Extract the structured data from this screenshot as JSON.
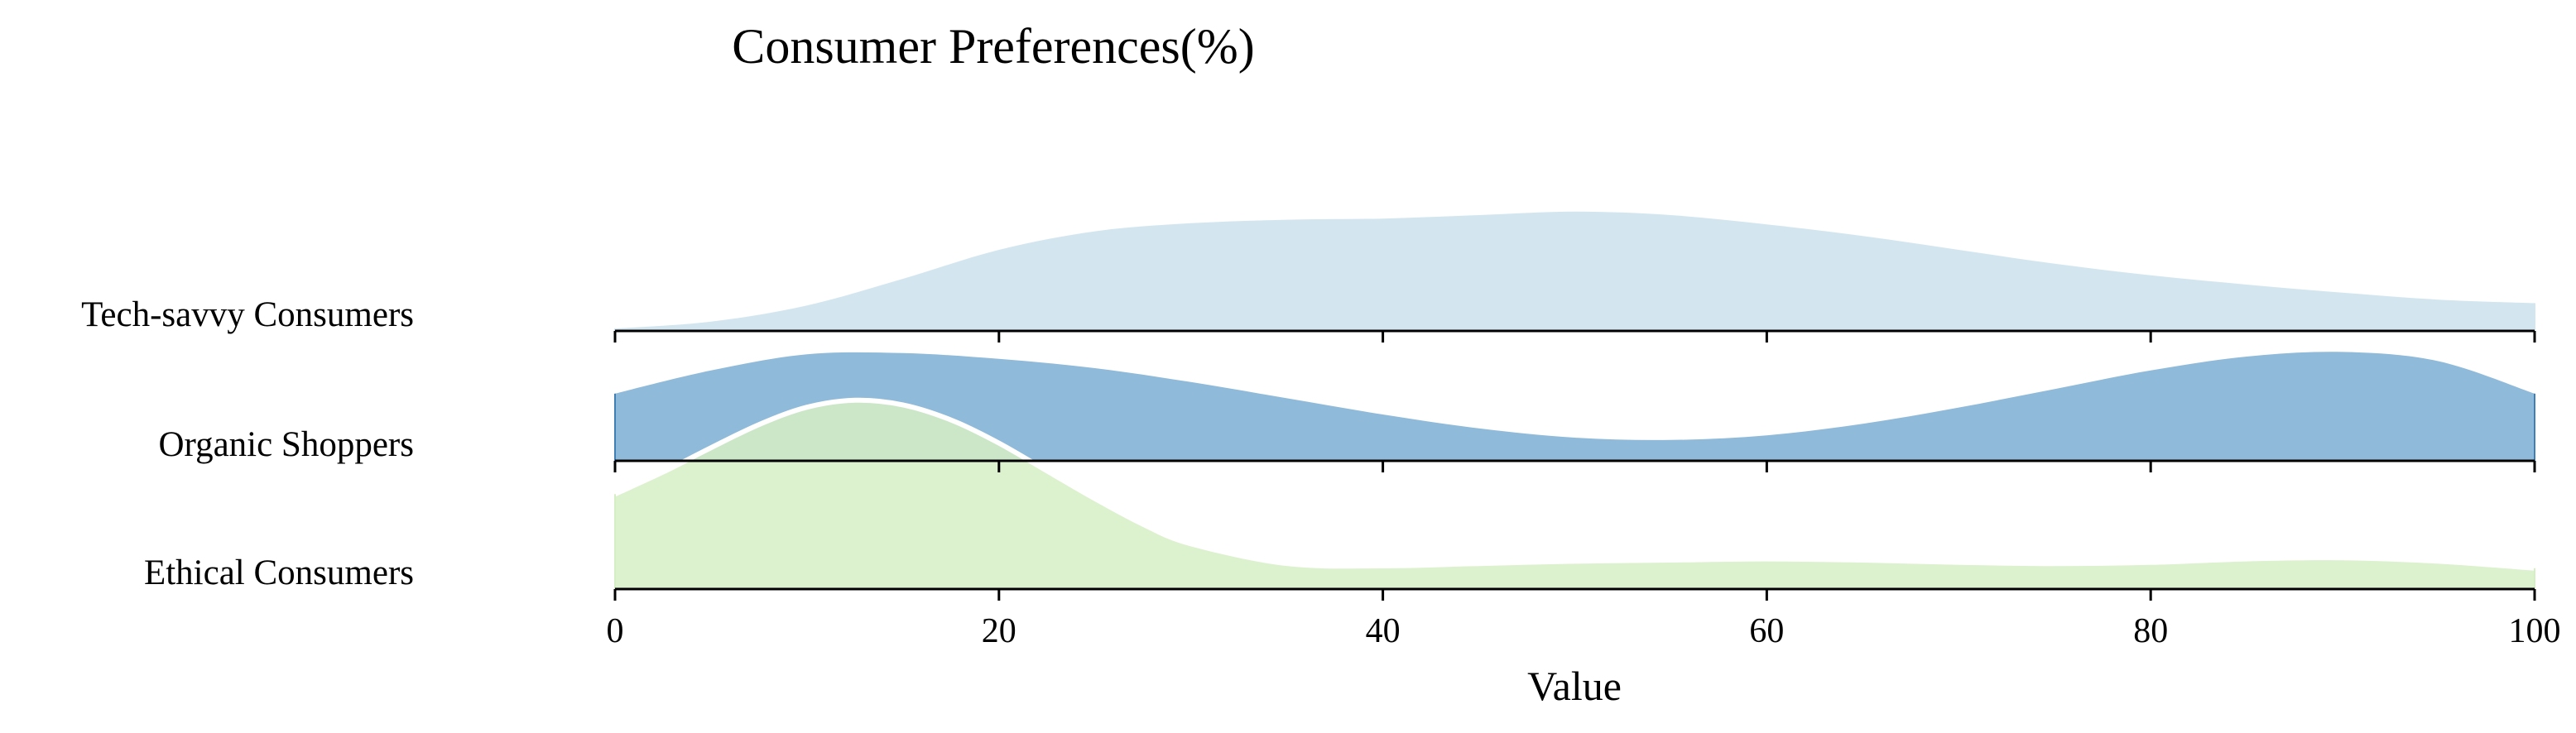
{
  "chart_data": {
    "type": "area",
    "title": "Consumer Preferences(%)",
    "xlabel": "Value",
    "ylabel": "",
    "xlim": [
      0,
      100
    ],
    "x_ticks": [
      0,
      20,
      40,
      60,
      80,
      100
    ],
    "grid": false,
    "legend": "none",
    "series": [
      {
        "name": "Tech-savvy Consumers",
        "color": "#d3e6f0",
        "x": [
          0,
          5,
          10,
          15,
          20,
          25,
          30,
          35,
          40,
          45,
          50,
          55,
          60,
          65,
          70,
          75,
          80,
          85,
          90,
          95,
          100
        ],
        "density": [
          0.02,
          0.08,
          0.22,
          0.45,
          0.7,
          0.86,
          0.93,
          0.96,
          0.97,
          1.0,
          1.03,
          1.0,
          0.92,
          0.82,
          0.7,
          0.58,
          0.48,
          0.4,
          0.33,
          0.27,
          0.24
        ]
      },
      {
        "name": "Organic Shoppers",
        "color": "#8fbad9",
        "x": [
          0,
          5,
          10,
          15,
          20,
          25,
          30,
          35,
          40,
          45,
          50,
          55,
          60,
          65,
          70,
          75,
          80,
          85,
          90,
          95,
          100
        ],
        "density": [
          0.58,
          0.78,
          0.92,
          0.93,
          0.88,
          0.8,
          0.68,
          0.54,
          0.4,
          0.28,
          0.2,
          0.18,
          0.22,
          0.32,
          0.46,
          0.62,
          0.78,
          0.9,
          0.94,
          0.86,
          0.58
        ]
      },
      {
        "name": "Ethical Consumers",
        "color": "#d6eec4",
        "x": [
          0,
          2.5,
          5,
          7.5,
          10,
          12.5,
          15,
          17.5,
          20,
          22.5,
          25,
          27.5,
          30,
          35,
          40,
          45,
          50,
          55,
          60,
          65,
          70,
          75,
          80,
          85,
          90,
          95,
          100
        ],
        "density": [
          0.82,
          1.01,
          1.22,
          1.42,
          1.57,
          1.63,
          1.59,
          1.46,
          1.26,
          1.02,
          0.78,
          0.56,
          0.39,
          0.22,
          0.2,
          0.22,
          0.24,
          0.25,
          0.26,
          0.25,
          0.23,
          0.22,
          0.23,
          0.26,
          0.27,
          0.24,
          0.18
        ]
      }
    ]
  }
}
